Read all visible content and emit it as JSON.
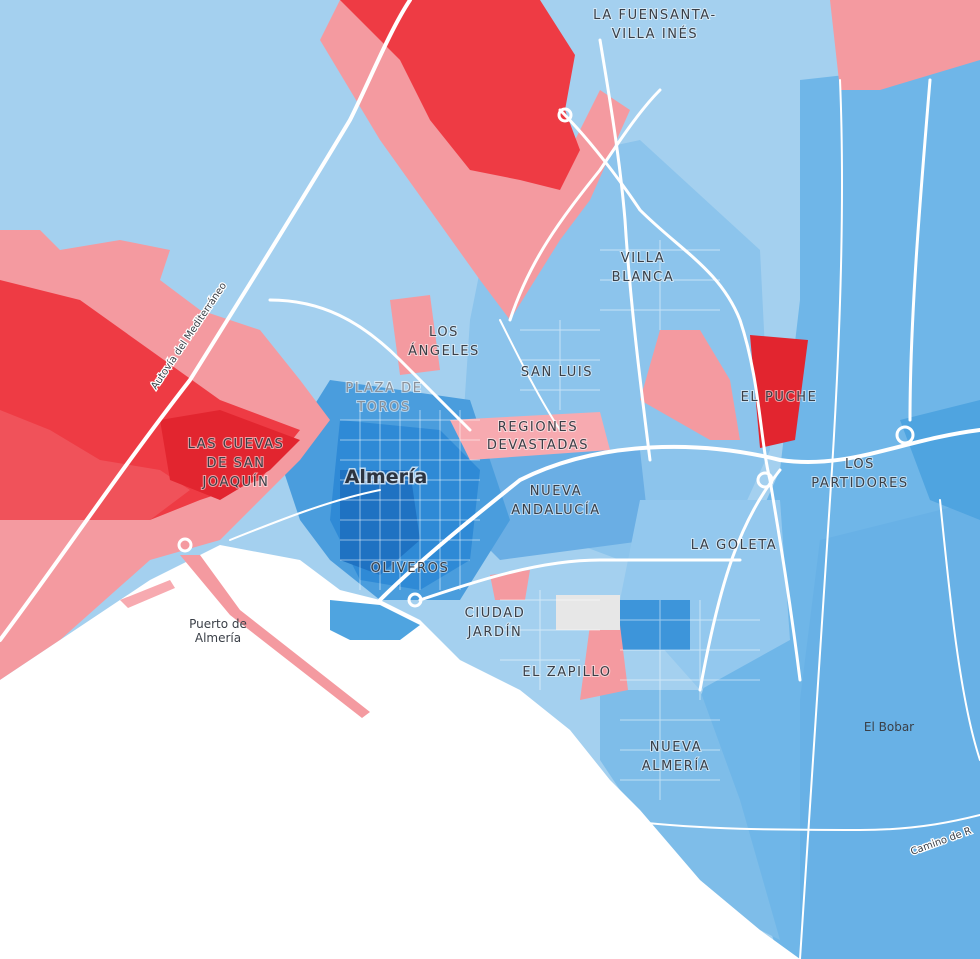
{
  "map": {
    "colors": {
      "land_light_blue": "#a4d0ef",
      "mid_blue": "#7ebde9",
      "blue": "#5aa9e2",
      "deep_blue": "#2f8ad6",
      "darkest_blue": "#1f72c2",
      "light_red": "#f49aa0",
      "red": "#ee3b44",
      "sea": "#ffffff",
      "road": "#ffffff",
      "no_data": "#e7e7e7"
    },
    "city_label": "Almería",
    "district_labels": {
      "fuensanta_1": "LA FUENSANTA-",
      "fuensanta_2": "VILLA INÉS",
      "villa_1": "VILLA",
      "villa_2": "BLANCA",
      "angeles_1": "LOS",
      "angeles_2": "ÁNGELES",
      "sanluis": "SAN LUIS",
      "toros_1": "PLAZA DE",
      "toros_2": "TOROS",
      "puche": "EL PUCHE",
      "regiones_1": "REGIONES",
      "regiones_2": "DEVASTADAS",
      "cuevas_1": "LAS CUEVAS",
      "cuevas_2": "DE SAN",
      "cuevas_3": "JOAQUÍN",
      "partidores_1": "LOS",
      "partidores_2": "PARTIDORES",
      "nueva_and_1": "NUEVA",
      "nueva_and_2": "ANDALUCÍA",
      "goleta": "LA GOLETA",
      "oliveros": "OLIVEROS",
      "ciudad_1": "CIUDAD",
      "ciudad_2": "JARDÍN",
      "zapillo": "EL ZAPILLO",
      "nueva_alm_1": "NUEVA",
      "nueva_alm_2": "ALMERÍA"
    },
    "place_labels": {
      "puerto_1": "Puerto de",
      "puerto_2": "Almería",
      "bobar": "El Bobar"
    },
    "road_labels": {
      "autovia": "Autovía del Mediterráneo",
      "camino": "Camino de R"
    }
  }
}
